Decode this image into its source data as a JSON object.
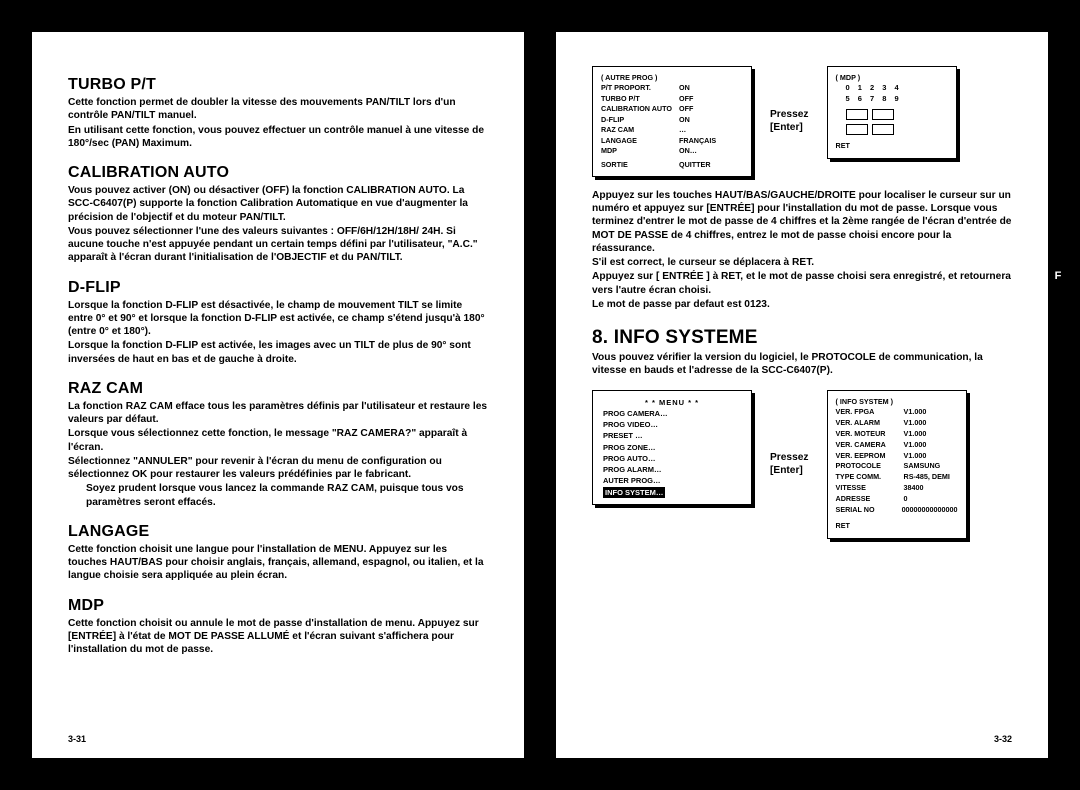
{
  "left_page": {
    "turbo": {
      "h": "TURBO P/T",
      "p1": "Cette fonction permet de doubler la vitesse des mouvements PAN/TILT lors d'un contrôle PAN/TILT manuel.",
      "p2": "En utilisant cette fonction, vous pouvez effectuer un contrôle manuel à une vitesse de 180°/sec (PAN) Maximum."
    },
    "calib": {
      "h": "CALIBRATION AUTO",
      "p1": "Vous pouvez activer (ON) ou désactiver (OFF) la fonction CALIBRATION AUTO. La SCC-C6407(P) supporte la fonction Calibration Automatique en vue d'augmenter la précision de l'objectif et du moteur PAN/TILT.",
      "p2": "Vous pouvez sélectionner l'une des valeurs suivantes : OFF/6H/12H/18H/ 24H. Si aucune touche n'est appuyée pendant un certain temps défini par l'utilisateur, \"A.C.\" apparaît à l'écran durant l'initialisation de l'OBJECTIF et du PAN/TILT."
    },
    "dflip": {
      "h": "D-FLIP",
      "p1": "Lorsque la fonction D-FLIP est désactivée, le champ de mouvement TILT se limite entre 0° et 90° et lorsque la fonction D-FLIP est activée, ce champ s'étend jusqu'à 180° (entre 0° et 180°).",
      "p2": "Lorsque la fonction D-FLIP est activée, les images avec un TILT de plus de 90° sont inversées de haut en bas et de gauche à droite."
    },
    "raz": {
      "h": "RAZ CAM",
      "p1": "La fonction RAZ CAM efface tous les paramètres définis par l'utilisateur et restaure les valeurs par défaut.",
      "p2": "Lorsque vous sélectionnez cette fonction, le message \"RAZ CAMERA?\" apparaît à l'écran.",
      "p3": "Sélectionnez \"ANNULER\" pour revenir à l'écran du menu de configuration ou sélectionnez OK pour restaurer les valeurs prédéfinies par le fabricant.",
      "sub": "Soyez prudent lorsque vous lancez la commande RAZ CAM, puisque tous vos paramètres seront effacés."
    },
    "lang": {
      "h": "LANGAGE",
      "p1": "Cette fonction choisit une langue pour l'installation de MENU. Appuyez sur les touches  HAUT/BAS pour choisir anglais, français, allemand, espagnol, ou italien, et la langue choisie sera appliquée au plein écran."
    },
    "mdp": {
      "h": "MDP",
      "p1": "Cette fonction choisit ou annule le mot de passe d'installation de menu. Appuyez sur [ENTRÉE] à l'état de MOT DE PASSE ALLUMÉ et l'écran suivant s'affichera pour l'installation du mot de passe."
    },
    "pgnum": "3-31"
  },
  "right_page": {
    "osd_left": {
      "title": "( AUTRE PROG )",
      "rows": [
        {
          "k": "P/T PROPORT.",
          "v": "ON"
        },
        {
          "k": "TURBO P/T",
          "v": "OFF"
        },
        {
          "k": "CALIBRATION AUTO",
          "v": "OFF"
        },
        {
          "k": "D-FLIP",
          "v": "ON"
        },
        {
          "k": "RAZ CAM",
          "v": "…"
        },
        {
          "k": "LANGAGE",
          "v": "FRANÇAIS"
        },
        {
          "k": "MDP",
          "v": "ON…"
        }
      ],
      "foot_k": "SORTIE",
      "foot_v": "QUITTER"
    },
    "pressez": "Pressez",
    "enter": "[Enter]",
    "osd_right": {
      "title": "( MDP )",
      "row1": "0  1  2  3  4",
      "row2": "5  6  7  8  9",
      "ret": "RET"
    },
    "para1": "Appuyez sur les touches HAUT/BAS/GAUCHE/DROITE pour localiser le curseur sur un numéro et appuyez sur [ENTRÉE] pour l'installation du mot de passe. Lorsque vous terminez d'entrer le mot de passe de 4 chiffres et la 2ème rangée de l'écran d'entrée de MOT DE PASSE de 4 chiffres, entrez le mot de passe choisi encore pour la réassurance.",
    "para2": "S'il est correct, le curseur se déplacera à RET.",
    "para3": "Appuyez sur [ ENTRÉE ] à RET, et le mot de passe choisi sera enregistré, et retournera vers l'autre écran choisi.",
    "para4": "Le mot de passe par defaut est 0123.",
    "info_h": "8. INFO SYSTEME",
    "info_p": "Vous pouvez vérifier la version du logiciel, le PROTOCOLE de communication, la vitesse en bauds et l'adresse de la SCC-C6407(P).",
    "menu": {
      "title": "* *  MENU  * *",
      "items": [
        "PROG CAMERA…",
        "PROG  VIDEO…",
        "PRESET …",
        "PROG ZONE…",
        "PROG AUTO…",
        "PROG ALARM…",
        "AUTER PROG…"
      ],
      "hl": "INFO SYSTEM…"
    },
    "info_box": {
      "title": "(  INFO SYSTEM )",
      "rows": [
        {
          "k": "VER. FPGA",
          "v": "V1.000"
        },
        {
          "k": "VER. ALARM",
          "v": "V1.000"
        },
        {
          "k": "VER. MOTEUR",
          "v": "V1.000"
        },
        {
          "k": "VER. CAMERA",
          "v": "V1.000"
        },
        {
          "k": "VER. EEPROM",
          "v": "V1.000"
        },
        {
          "k": "PROTOCOLE",
          "v": "SAMSUNG"
        },
        {
          "k": "TYPE COMM.",
          "v": "RS-485, DEMI"
        },
        {
          "k": "VITESSE",
          "v": "38400"
        },
        {
          "k": "ADRESSE",
          "v": "0"
        },
        {
          "k": "SERIAL NO",
          "v": "00000000000000"
        }
      ],
      "ret": "RET"
    },
    "pgnum": "3-32",
    "side_tab": "F"
  }
}
